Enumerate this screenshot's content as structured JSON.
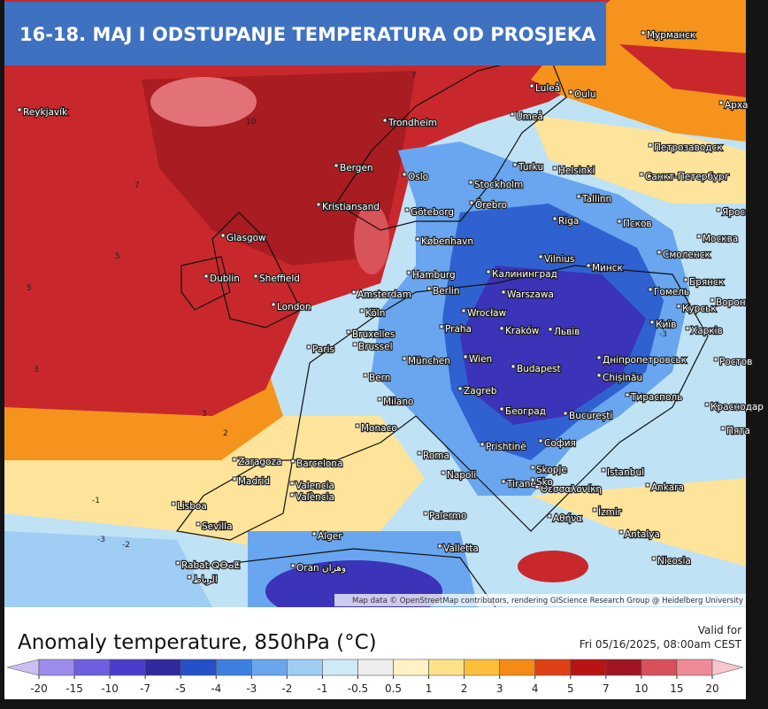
{
  "title": "16-18. MAJ I ODSTUPANJE TEMPERATURA OD PROSJEKA",
  "attribution": "Map data © OpenStreetMap contributors, rendering GIScience Research Group @ Heidelberg University",
  "valid": {
    "label": "Valid for",
    "time": "Fri 05/16/2025, 08:00am CEST"
  },
  "legend": {
    "title": "Anomaly temperature, 850hPa (°C)",
    "ticks": [
      -20,
      -15,
      -10,
      -7,
      -5,
      -4,
      -3,
      -2,
      -1,
      -0.5,
      0.5,
      1,
      2,
      3,
      4,
      5,
      7,
      10,
      15,
      20
    ],
    "colors": [
      "#cbbff4",
      "#9b8cee",
      "#6d5fe0",
      "#4c3ccd",
      "#2f2a9e",
      "#2450c8",
      "#3d7fe0",
      "#69a6ef",
      "#9fcdf4",
      "#cfe9f7",
      "#eeeeee",
      "#fff2c4",
      "#fde28a",
      "#fbbf3c",
      "#f58a14",
      "#e04016",
      "#b81414",
      "#a01424",
      "#d8505c",
      "#f08a96",
      "#f9c5cc"
    ]
  },
  "contour_labels": [
    10,
    7,
    7,
    5,
    5,
    3,
    3,
    2,
    -1,
    -2,
    -3,
    -3
  ],
  "cities": [
    "Reykjavík",
    "Trondheim",
    "Bergen",
    "Oslo",
    "Kristiansand",
    "Göteborg",
    "Stockholm",
    "Örebro",
    "Turku",
    "Helsinki",
    "Tallinn",
    "Luleå",
    "Oulu",
    "Umeå",
    "Мурманск",
    "Арха",
    "Петрозаводск",
    "Санкт-Петербург",
    "Псков",
    "Riga",
    "Москва",
    "Ярос",
    "Смоленск",
    "Брянск",
    "Glasgow",
    "Dublin",
    "Sheffield",
    "London",
    "København",
    "Hamburg",
    "Amsterdam",
    "Berlin",
    "Калининград",
    "Vilnius",
    "Минск",
    "Warszawa",
    "Гомель",
    "Köln",
    "Bruxelles",
    "Brussel",
    "Wrocław",
    "Praha",
    "Kraków",
    "Львів",
    "Київ",
    "Курськ",
    "Харків",
    "Paris",
    "München",
    "Wien",
    "Budapest",
    "Дніпропетровськ",
    "Chișinău",
    "Bern",
    "Milano",
    "Zagreb",
    "Београд",
    "Тирасполь",
    "București",
    "Monaco",
    "Prishtinë",
    "София",
    "Zaragoza",
    "Barcelona",
    "Roma",
    "Madrid",
    "Napoli",
    "Tirane",
    "Skopje",
    "Istanbul",
    "Ankara",
    "Valencia",
    "València",
    "Θεσσαλονίκη",
    "Lisboa",
    "Sevilla",
    "Palermo",
    "Αθήνα",
    "İzmir",
    "Alger",
    "Antalya",
    "Valletta",
    "Rabat ⵕⴱⴰⵟ",
    "الرباط",
    "Oran وهران",
    "Nicosia",
    "Ростов",
    "Краснодар",
    "Пята",
    "Ворон",
    "Sko"
  ]
}
